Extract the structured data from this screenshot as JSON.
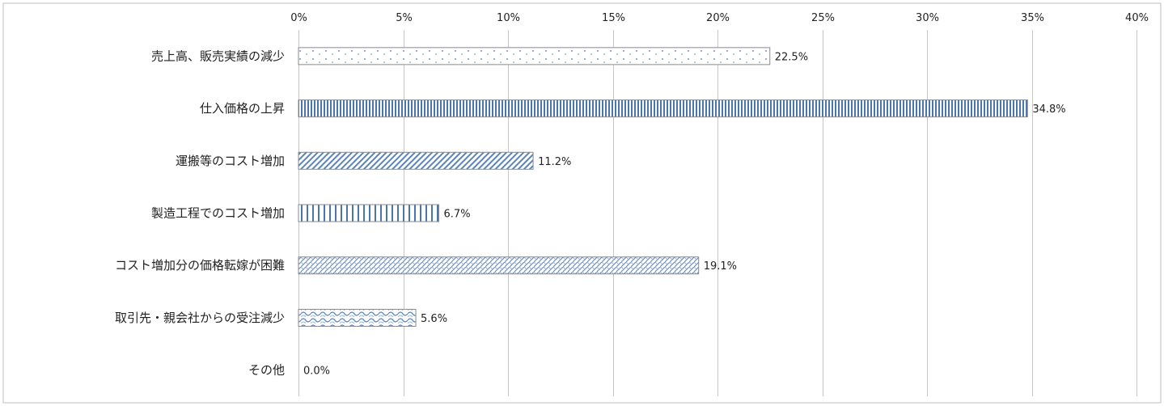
{
  "chart_data": {
    "type": "bar",
    "orientation": "horizontal",
    "categories": [
      "売上高、販売実績の減少",
      "仕入価格の上昇",
      "運搬等のコスト増加",
      "製造工程でのコスト増加",
      "コスト増加分の価格転嫁が困難",
      "取引先・親会社からの受注減少",
      "その他"
    ],
    "values": [
      22.5,
      34.8,
      11.2,
      6.7,
      19.1,
      5.6,
      0.0
    ],
    "value_labels": [
      "22.5%",
      "34.8%",
      "11.2%",
      "6.7%",
      "19.1%",
      "5.6%",
      "0.0%"
    ],
    "xlim": [
      0,
      40
    ],
    "xticks": [
      0,
      5,
      10,
      15,
      20,
      25,
      30,
      35,
      40
    ],
    "xtick_labels": [
      "0%",
      "5%",
      "10%",
      "15%",
      "20%",
      "25%",
      "30%",
      "35%",
      "40%"
    ],
    "x_axis_position": "top",
    "grid": true,
    "legend": "none",
    "bar_patterns": [
      "dots",
      "dense-vertical",
      "diagonal-hatch",
      "vertical-lines",
      "zigzag-hatch",
      "wave",
      "none"
    ],
    "colors": {
      "bar_pattern": "#4a76b0",
      "bar_pattern_light": "#7fa3cc",
      "bar_border": "#8a8a8a",
      "grid": "#c6c6c6",
      "frame": "#bfbfbf"
    }
  }
}
